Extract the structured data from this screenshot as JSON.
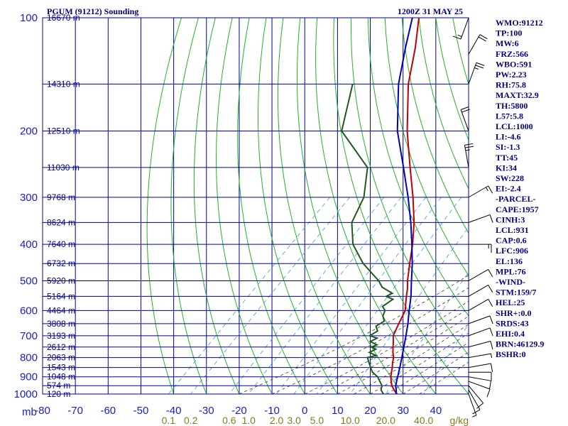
{
  "header": {
    "title": "PGUM (91212) Sounding",
    "datetime": "1200Z 31 MAY 25"
  },
  "chart_data": {
    "type": "line",
    "chart_kind": "skew-T log-P sounding",
    "y_axis_unit": "mb",
    "y_scale": "log",
    "pressure_range": [
      100,
      1000
    ],
    "pressure_ticks": [
      100,
      200,
      300,
      400,
      500,
      600,
      700,
      800,
      900,
      1000
    ],
    "pressure_labels": [
      "100",
      "200",
      "300",
      "400",
      "500",
      "600",
      "700",
      "800",
      "900",
      "1000"
    ],
    "temp_range": [
      -80,
      50
    ],
    "temp_ticks": [
      -80,
      -70,
      -60,
      -50,
      -40,
      -30,
      -20,
      -10,
      0,
      10,
      20,
      30,
      40
    ],
    "temp_labels": [
      "-80",
      "-70",
      "-60",
      "-50",
      "-40",
      "-30",
      "-20",
      "-10",
      "0",
      "10",
      "20",
      "30",
      "40"
    ],
    "x_unit_label": "mb",
    "mixing_ratio_labels": [
      {
        "text": "0.1",
        "w": 0.1
      },
      {
        "text": "0.2",
        "w": 0.2
      },
      {
        "text": "0.6",
        "w": 0.6
      },
      {
        "text": "1.0",
        "w": 1.0
      },
      {
        "text": "2.0",
        "w": 2.0
      },
      {
        "text": "3.0",
        "w": 3.0
      },
      {
        "text": "5.0",
        "w": 5.0
      },
      {
        "text": "10.0",
        "w": 10.0
      },
      {
        "text": "20.0",
        "w": 20.0
      },
      {
        "text": "40.0",
        "w": 40.0
      }
    ],
    "mixing_ratio_unit": "g/kg",
    "heights": [
      {
        "p": 100,
        "text": "16670 m"
      },
      {
        "p": 150,
        "text": "14310 m"
      },
      {
        "p": 200,
        "text": "12510 m"
      },
      {
        "p": 250,
        "text": "11030 m"
      },
      {
        "p": 300,
        "text": "9768 m"
      },
      {
        "p": 350,
        "text": "8624 m"
      },
      {
        "p": 400,
        "text": "7640 m"
      },
      {
        "p": 450,
        "text": "6732 m"
      },
      {
        "p": 500,
        "text": "5920 m"
      },
      {
        "p": 550,
        "text": "5164 m"
      },
      {
        "p": 600,
        "text": "4464 m"
      },
      {
        "p": 650,
        "text": "3808 m"
      },
      {
        "p": 700,
        "text": "3193 m"
      },
      {
        "p": 750,
        "text": "2612 m"
      },
      {
        "p": 800,
        "text": "2063 m"
      },
      {
        "p": 850,
        "text": "1543 m"
      },
      {
        "p": 900,
        "text": "1048 m"
      },
      {
        "p": 950,
        "text": "574 m"
      },
      {
        "p": 1000,
        "text": "120 m"
      }
    ],
    "series": [
      {
        "name": "",
        "color": "#c00000",
        "role": "temperature",
        "points": [
          [
            1000,
            28
          ],
          [
            975,
            26
          ],
          [
            950,
            24
          ],
          [
            925,
            22.5
          ],
          [
            900,
            21
          ],
          [
            875,
            19.8
          ],
          [
            850,
            18.6
          ],
          [
            825,
            17.2
          ],
          [
            800,
            16
          ],
          [
            775,
            14.2
          ],
          [
            750,
            12.6
          ],
          [
            725,
            11
          ],
          [
            700,
            9.2
          ],
          [
            650,
            7.2
          ],
          [
            600,
            5.2
          ],
          [
            575,
            3.2
          ],
          [
            550,
            1.2
          ],
          [
            525,
            -0.8
          ],
          [
            500,
            -3.2
          ],
          [
            450,
            -7.8
          ],
          [
            400,
            -12.8
          ],
          [
            350,
            -19
          ],
          [
            300,
            -27
          ],
          [
            250,
            -37
          ],
          [
            200,
            -49
          ],
          [
            150,
            -63
          ],
          [
            120,
            -72
          ],
          [
            100,
            -80
          ]
        ]
      },
      {
        "name": "",
        "color": "#1e5a1e",
        "role": "dewpoint",
        "points": [
          [
            1000,
            24
          ],
          [
            975,
            22
          ],
          [
            950,
            21
          ],
          [
            925,
            19
          ],
          [
            900,
            17
          ],
          [
            875,
            14
          ],
          [
            850,
            12
          ],
          [
            825,
            10
          ],
          [
            800,
            8
          ],
          [
            790,
            10
          ],
          [
            775,
            7
          ],
          [
            760,
            8
          ],
          [
            750,
            6
          ],
          [
            740,
            7
          ],
          [
            725,
            4
          ],
          [
            710,
            5
          ],
          [
            700,
            2
          ],
          [
            680,
            3
          ],
          [
            660,
            1
          ],
          [
            640,
            2
          ],
          [
            620,
            0
          ],
          [
            600,
            -1
          ],
          [
            585,
            -3
          ],
          [
            560,
            -2
          ],
          [
            550,
            -5
          ],
          [
            540,
            -4
          ],
          [
            520,
            -9
          ],
          [
            500,
            -12
          ],
          [
            450,
            -22
          ],
          [
            400,
            -31
          ],
          [
            350,
            -38
          ],
          [
            300,
            -42
          ],
          [
            250,
            -50
          ],
          [
            200,
            -69
          ],
          [
            150,
            -80
          ]
        ]
      },
      {
        "name": "",
        "color": "#0000c0",
        "role": "parcel",
        "points": [
          [
            1000,
            28
          ],
          [
            950,
            25.2
          ],
          [
            931,
            24.4
          ],
          [
            900,
            23.1
          ],
          [
            850,
            20.9
          ],
          [
            800,
            18.5
          ],
          [
            750,
            15.9
          ],
          [
            700,
            13.1
          ],
          [
            650,
            10
          ],
          [
            600,
            6.4
          ],
          [
            550,
            2.6
          ],
          [
            500,
            -2
          ],
          [
            450,
            -7
          ],
          [
            400,
            -13
          ],
          [
            350,
            -20
          ],
          [
            300,
            -28.5
          ],
          [
            250,
            -39
          ],
          [
            200,
            -52
          ],
          [
            150,
            -66
          ],
          [
            120,
            -75
          ],
          [
            100,
            -82
          ]
        ]
      }
    ],
    "winds": [
      {
        "p": 1000,
        "dir": 160,
        "spd": 8
      },
      {
        "p": 975,
        "dir": 150,
        "spd": 12
      },
      {
        "p": 950,
        "dir": 140,
        "spd": 12
      },
      {
        "p": 925,
        "dir": 110,
        "spd": 12
      },
      {
        "p": 900,
        "dir": 100,
        "spd": 12
      },
      {
        "p": 875,
        "dir": 90,
        "spd": 12
      },
      {
        "p": 850,
        "dir": 80,
        "spd": 10
      },
      {
        "p": 800,
        "dir": 80,
        "spd": 8
      },
      {
        "p": 750,
        "dir": 75,
        "spd": 10
      },
      {
        "p": 700,
        "dir": 70,
        "spd": 10
      },
      {
        "p": 650,
        "dir": 70,
        "spd": 10
      },
      {
        "p": 600,
        "dir": 60,
        "spd": 10
      },
      {
        "p": 550,
        "dir": 60,
        "spd": 12
      },
      {
        "p": 500,
        "dir": 60,
        "spd": 10
      },
      {
        "p": 400,
        "dir": 90,
        "spd": 15
      },
      {
        "p": 350,
        "dir": 70,
        "spd": 12
      },
      {
        "p": 300,
        "dir": 60,
        "spd": 15
      },
      {
        "p": 250,
        "dir": 350,
        "spd": 25
      },
      {
        "p": 200,
        "dir": 340,
        "spd": 20
      },
      {
        "p": 150,
        "dir": 20,
        "spd": 25
      },
      {
        "p": 125,
        "dir": 30,
        "spd": 20
      },
      {
        "p": 100,
        "dir": 200,
        "spd": 15
      }
    ]
  },
  "indices": [
    "WMO:91212",
    "TP:100",
    "MW:6",
    "FRZ:566",
    "WBO:591",
    "PW:2.23",
    "RH:75.8",
    "MAXT:32.9",
    "TH:5800",
    "L57:5.8",
    "LCL:1000",
    "LI:-4.6",
    "SI:-1.3",
    "TT:45",
    "KI:34",
    "SW:228",
    "EI:-2.4",
    "-PARCEL-",
    "CAPE:1957",
    "CINH:3",
    "LCL:931",
    "CAP:0.6",
    "LFC:906",
    "EL:136",
    "MPL:76",
    "-WIND-",
    "STM:159/7",
    "HEL:25",
    "SHR+:0.0",
    "SRDS:43",
    "EHI:0.4",
    "BRN:46129.9",
    "BSHR:0"
  ]
}
